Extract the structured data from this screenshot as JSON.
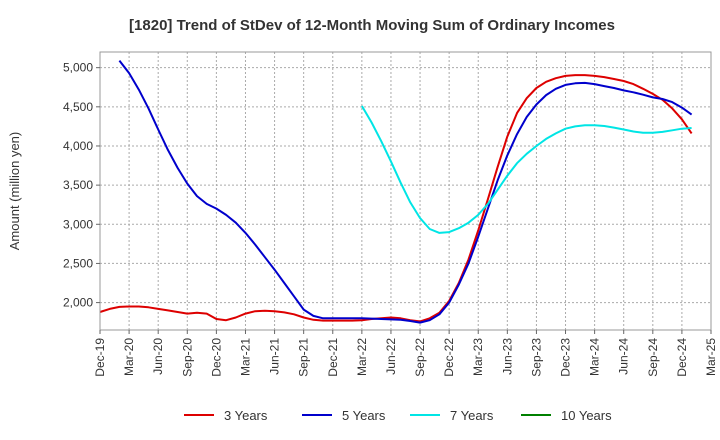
{
  "chart_data": {
    "type": "line",
    "title": "[1820]  Trend of StDev of 12-Month Moving Sum of Ordinary Incomes",
    "ylabel": "Amount (million yen)",
    "xlabel": "",
    "ylim": [
      1650,
      5200
    ],
    "yticks": [
      2000,
      2500,
      3000,
      3500,
      4000,
      4500,
      5000
    ],
    "ytick_labels": [
      "2,000",
      "2,500",
      "3,000",
      "3,500",
      "4,000",
      "4,500",
      "5,000"
    ],
    "xticks": [
      "2019-12",
      "2020-03",
      "2020-06",
      "2020-09",
      "2020-12",
      "2021-03",
      "2021-06",
      "2021-09",
      "2021-12",
      "2022-03",
      "2022-06",
      "2022-09",
      "2022-12",
      "2023-03",
      "2023-06",
      "2023-09",
      "2023-12",
      "2024-03",
      "2024-06",
      "2024-09",
      "2024-12",
      "2025-03"
    ],
    "xtick_labels": [
      "Dec-19",
      "Mar-20",
      "Jun-20",
      "Sep-20",
      "Dec-20",
      "Mar-21",
      "Jun-21",
      "Sep-21",
      "Dec-21",
      "Mar-22",
      "Jun-22",
      "Sep-22",
      "Dec-22",
      "Mar-23",
      "Jun-23",
      "Sep-23",
      "Dec-23",
      "Mar-24",
      "Jun-24",
      "Sep-24",
      "Dec-24",
      "Mar-25"
    ],
    "grid": true,
    "legend_position": "bottom",
    "series": [
      {
        "name": "3 Years",
        "color": "#dd0000",
        "points": [
          [
            "2019-12",
            1880
          ],
          [
            "2020-01",
            1920
          ],
          [
            "2020-02",
            1945
          ],
          [
            "2020-03",
            1950
          ],
          [
            "2020-04",
            1950
          ],
          [
            "2020-05",
            1940
          ],
          [
            "2020-06",
            1920
          ],
          [
            "2020-07",
            1900
          ],
          [
            "2020-08",
            1880
          ],
          [
            "2020-09",
            1860
          ],
          [
            "2020-10",
            1870
          ],
          [
            "2020-11",
            1860
          ],
          [
            "2020-12",
            1790
          ],
          [
            "2021-01",
            1775
          ],
          [
            "2021-02",
            1810
          ],
          [
            "2021-03",
            1860
          ],
          [
            "2021-04",
            1890
          ],
          [
            "2021-05",
            1895
          ],
          [
            "2021-06",
            1890
          ],
          [
            "2021-07",
            1875
          ],
          [
            "2021-08",
            1850
          ],
          [
            "2021-09",
            1810
          ],
          [
            "2021-10",
            1780
          ],
          [
            "2021-11",
            1770
          ],
          [
            "2021-12",
            1770
          ],
          [
            "2022-01",
            1770
          ],
          [
            "2022-02",
            1770
          ],
          [
            "2022-03",
            1775
          ],
          [
            "2022-04",
            1790
          ],
          [
            "2022-05",
            1800
          ],
          [
            "2022-06",
            1810
          ],
          [
            "2022-07",
            1800
          ],
          [
            "2022-08",
            1775
          ],
          [
            "2022-09",
            1760
          ],
          [
            "2022-10",
            1800
          ],
          [
            "2022-11",
            1870
          ],
          [
            "2022-12",
            2020
          ],
          [
            "2023-01",
            2250
          ],
          [
            "2023-02",
            2550
          ],
          [
            "2023-03",
            2920
          ],
          [
            "2023-04",
            3320
          ],
          [
            "2023-05",
            3730
          ],
          [
            "2023-06",
            4120
          ],
          [
            "2023-07",
            4420
          ],
          [
            "2023-08",
            4610
          ],
          [
            "2023-09",
            4740
          ],
          [
            "2023-10",
            4820
          ],
          [
            "2023-11",
            4865
          ],
          [
            "2023-12",
            4895
          ],
          [
            "2024-01",
            4905
          ],
          [
            "2024-02",
            4905
          ],
          [
            "2024-03",
            4895
          ],
          [
            "2024-04",
            4880
          ],
          [
            "2024-05",
            4855
          ],
          [
            "2024-06",
            4830
          ],
          [
            "2024-07",
            4790
          ],
          [
            "2024-08",
            4730
          ],
          [
            "2024-09",
            4665
          ],
          [
            "2024-10",
            4590
          ],
          [
            "2024-11",
            4480
          ],
          [
            "2024-12",
            4340
          ],
          [
            "2025-01",
            4160
          ]
        ]
      },
      {
        "name": "5 Years",
        "color": "#0000cc",
        "points": [
          [
            "2020-02",
            5090
          ],
          [
            "2020-03",
            4930
          ],
          [
            "2020-04",
            4720
          ],
          [
            "2020-05",
            4480
          ],
          [
            "2020-06",
            4210
          ],
          [
            "2020-07",
            3950
          ],
          [
            "2020-08",
            3720
          ],
          [
            "2020-09",
            3520
          ],
          [
            "2020-10",
            3360
          ],
          [
            "2020-11",
            3260
          ],
          [
            "2020-12",
            3200
          ],
          [
            "2021-01",
            3120
          ],
          [
            "2021-02",
            3020
          ],
          [
            "2021-03",
            2890
          ],
          [
            "2021-04",
            2740
          ],
          [
            "2021-05",
            2580
          ],
          [
            "2021-06",
            2420
          ],
          [
            "2021-07",
            2250
          ],
          [
            "2021-08",
            2080
          ],
          [
            "2021-09",
            1910
          ],
          [
            "2021-10",
            1830
          ],
          [
            "2021-11",
            1800
          ],
          [
            "2021-12",
            1800
          ],
          [
            "2022-01",
            1800
          ],
          [
            "2022-02",
            1800
          ],
          [
            "2022-03",
            1800
          ],
          [
            "2022-04",
            1795
          ],
          [
            "2022-05",
            1790
          ],
          [
            "2022-06",
            1785
          ],
          [
            "2022-07",
            1780
          ],
          [
            "2022-08",
            1765
          ],
          [
            "2022-09",
            1745
          ],
          [
            "2022-10",
            1775
          ],
          [
            "2022-11",
            1850
          ],
          [
            "2022-12",
            2000
          ],
          [
            "2023-01",
            2230
          ],
          [
            "2023-02",
            2500
          ],
          [
            "2023-03",
            2840
          ],
          [
            "2023-04",
            3200
          ],
          [
            "2023-05",
            3560
          ],
          [
            "2023-06",
            3880
          ],
          [
            "2023-07",
            4150
          ],
          [
            "2023-08",
            4370
          ],
          [
            "2023-09",
            4530
          ],
          [
            "2023-10",
            4650
          ],
          [
            "2023-11",
            4730
          ],
          [
            "2023-12",
            4780
          ],
          [
            "2024-01",
            4800
          ],
          [
            "2024-02",
            4805
          ],
          [
            "2024-03",
            4790
          ],
          [
            "2024-04",
            4765
          ],
          [
            "2024-05",
            4740
          ],
          [
            "2024-06",
            4710
          ],
          [
            "2024-07",
            4685
          ],
          [
            "2024-08",
            4655
          ],
          [
            "2024-09",
            4620
          ],
          [
            "2024-10",
            4600
          ],
          [
            "2024-11",
            4560
          ],
          [
            "2024-12",
            4490
          ],
          [
            "2025-01",
            4400
          ]
        ]
      },
      {
        "name": "7 Years",
        "color": "#00e5e5",
        "points": [
          [
            "2022-03",
            4510
          ],
          [
            "2022-04",
            4300
          ],
          [
            "2022-05",
            4060
          ],
          [
            "2022-06",
            3800
          ],
          [
            "2022-07",
            3530
          ],
          [
            "2022-08",
            3280
          ],
          [
            "2022-09",
            3080
          ],
          [
            "2022-10",
            2940
          ],
          [
            "2022-11",
            2890
          ],
          [
            "2022-12",
            2900
          ],
          [
            "2023-01",
            2950
          ],
          [
            "2023-02",
            3020
          ],
          [
            "2023-03",
            3120
          ],
          [
            "2023-04",
            3260
          ],
          [
            "2023-05",
            3440
          ],
          [
            "2023-06",
            3620
          ],
          [
            "2023-07",
            3780
          ],
          [
            "2023-08",
            3900
          ],
          [
            "2023-09",
            4000
          ],
          [
            "2023-10",
            4090
          ],
          [
            "2023-11",
            4160
          ],
          [
            "2023-12",
            4220
          ],
          [
            "2024-01",
            4250
          ],
          [
            "2024-02",
            4265
          ],
          [
            "2024-03",
            4265
          ],
          [
            "2024-04",
            4255
          ],
          [
            "2024-05",
            4235
          ],
          [
            "2024-06",
            4210
          ],
          [
            "2024-07",
            4185
          ],
          [
            "2024-08",
            4170
          ],
          [
            "2024-09",
            4170
          ],
          [
            "2024-10",
            4180
          ],
          [
            "2024-11",
            4200
          ],
          [
            "2024-12",
            4220
          ],
          [
            "2025-01",
            4230
          ]
        ]
      },
      {
        "name": "10 Years",
        "color": "#008000",
        "points": []
      }
    ]
  }
}
